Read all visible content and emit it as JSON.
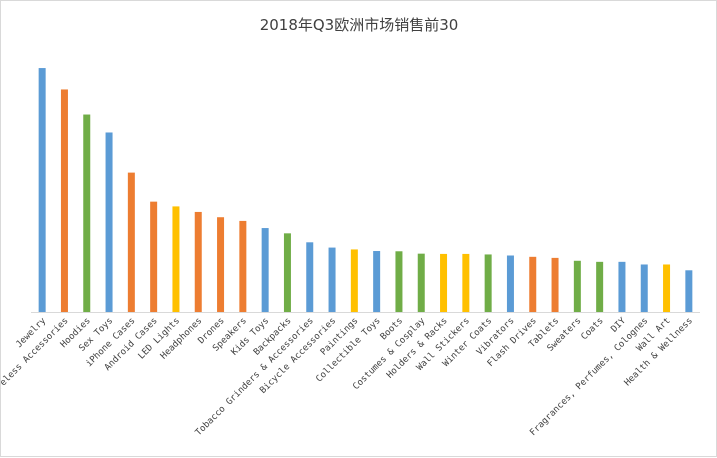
{
  "chart_data": {
    "type": "bar",
    "title": "2018年Q3欧洲市场销售前30",
    "xlabel": "",
    "ylabel": "",
    "ylim": [
      0,
      100
    ],
    "grid": false,
    "legend": "none",
    "categories": [
      "Jewelry",
      "Wireless Accessories",
      "Hoodies",
      "Sex Toys",
      "iPhone Cases",
      "Android Cases",
      "LED Lights",
      "Headphones",
      "Drones",
      "Speakers",
      "Kids Toys",
      "Backpacks",
      "Tobacco Grinders & Accessories",
      "Bicycle Accessories",
      "Paintings",
      "Collectible Toys",
      "Boots",
      "Costumes & Cosplay",
      "Holders & Racks",
      "Wall Stickers",
      "Winter Coats",
      "Vibrators",
      "Flash Drives",
      "Tablets",
      "Sweaters",
      "Coats",
      "DIY",
      "Fragrances, Perfumes, Colognes",
      "Wall Art",
      "Health & Wellness"
    ],
    "values": [
      92.4,
      84.3,
      74.8,
      68.0,
      52.8,
      41.8,
      40.0,
      37.9,
      35.9,
      34.5,
      31.8,
      29.8,
      26.4,
      24.4,
      23.7,
      23.1,
      23.0,
      22.1,
      22.0,
      22.0,
      21.8,
      21.4,
      20.9,
      20.5,
      19.4,
      19.0,
      19.0,
      18.0,
      18.0,
      15.8
    ],
    "colors": [
      "#5b9bd5",
      "#ed7d31",
      "#70ad47",
      "#5b9bd5",
      "#ed7d31",
      "#ed7d31",
      "#ffc000",
      "#ed7d31",
      "#ed7d31",
      "#ed7d31",
      "#5b9bd5",
      "#70ad47",
      "#5b9bd5",
      "#5b9bd5",
      "#ffc000",
      "#5b9bd5",
      "#70ad47",
      "#70ad47",
      "#ffc000",
      "#ffc000",
      "#70ad47",
      "#5b9bd5",
      "#ed7d31",
      "#ed7d31",
      "#70ad47",
      "#70ad47",
      "#5b9bd5",
      "#5b9bd5",
      "#ffc000",
      "#5b9bd5"
    ],
    "axis_color": "#d9d9d9"
  }
}
